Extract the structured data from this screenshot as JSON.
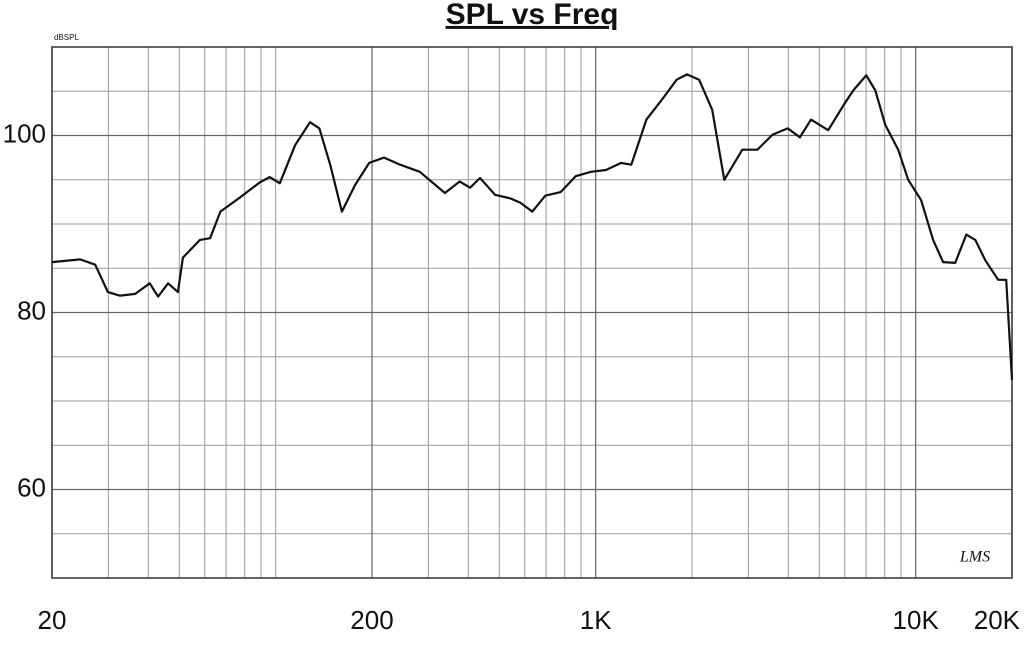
{
  "chart_data": {
    "type": "line",
    "title": "SPL vs Freq",
    "y_unit_label": "dBSPL",
    "watermark": "LMS",
    "xscale": "log",
    "xlim": [
      20,
      20000
    ],
    "ylim": [
      50,
      110
    ],
    "xticks": [
      20,
      200,
      {
        "value": 1000,
        "label": "1K"
      },
      {
        "value": 10000,
        "label": "10K"
      },
      {
        "value": 20000,
        "label": "20K"
      }
    ],
    "yticks": [
      60,
      80,
      100
    ],
    "x_minor_ticks": [
      30,
      40,
      50,
      60,
      70,
      80,
      90,
      100,
      300,
      400,
      500,
      600,
      700,
      800,
      900,
      2000,
      3000,
      4000,
      5000,
      6000,
      7000,
      8000,
      9000
    ],
    "y_minor_ticks": [
      55,
      65,
      70,
      75,
      85,
      90,
      95,
      105
    ],
    "grid": true,
    "series": [
      {
        "name": "SPL",
        "color": "#111111",
        "x": [
          20,
          24.5,
          27.3,
          29.9,
          32.6,
          36.4,
          40.4,
          42.9,
          46.1,
          49.5,
          51.3,
          58,
          62.4,
          67.2,
          77.4,
          89.2,
          95.8,
          103,
          115,
          128,
          137,
          148,
          161,
          177,
          196,
          218,
          245,
          282,
          338,
          376,
          405,
          435,
          485,
          540,
          582,
          634,
          696,
          777,
          866,
          966,
          1077,
          1201,
          1292,
          1441,
          1607,
          1792,
          1929,
          2105,
          2313,
          2523,
          2873,
          3203,
          3572,
          3983,
          4347,
          4710,
          5330,
          5946,
          6385,
          7011,
          7479,
          8037,
          8820,
          9475,
          10395,
          11335,
          12184,
          13290,
          14393,
          15355,
          16506,
          18108,
          19182,
          20000
        ],
        "values": [
          85.7,
          86,
          85.4,
          82.3,
          81.9,
          82.1,
          83.3,
          81.8,
          83.3,
          82.3,
          86.2,
          88.2,
          88.4,
          91.4,
          93,
          94.7,
          95.3,
          94.6,
          98.9,
          101.5,
          100.8,
          96.7,
          91.4,
          94.4,
          96.9,
          97.5,
          96.7,
          95.9,
          93.5,
          94.8,
          94.1,
          95.2,
          93.3,
          92.9,
          92.4,
          91.4,
          93.2,
          93.6,
          95.4,
          95.9,
          96.1,
          96.9,
          96.7,
          101.8,
          104,
          106.3,
          106.9,
          106.3,
          102.9,
          95,
          98.4,
          98.4,
          100.1,
          100.8,
          99.8,
          101.8,
          100.6,
          103.4,
          105.1,
          106.8,
          105.1,
          101.2,
          98.4,
          95,
          92.7,
          88.2,
          85.7,
          85.6,
          88.8,
          88.2,
          85.9,
          83.7,
          83.7,
          72.4
        ]
      }
    ]
  }
}
